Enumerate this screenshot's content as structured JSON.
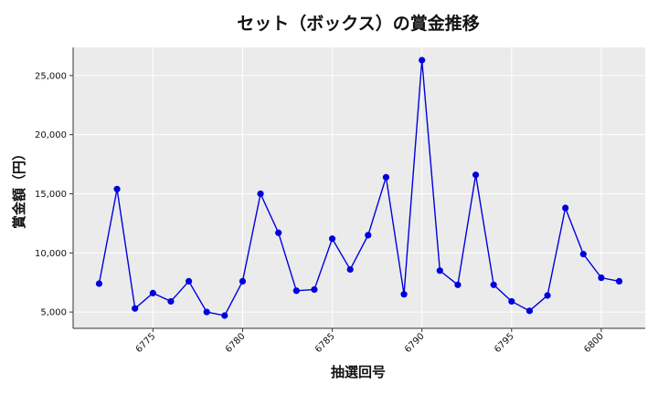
{
  "chart_data": {
    "type": "line",
    "title": "セット（ボックス）の賞金推移",
    "xlabel": "抽選回号",
    "ylabel": "賞金額（円）",
    "x": [
      6772,
      6773,
      6774,
      6775,
      6776,
      6777,
      6778,
      6779,
      6780,
      6781,
      6782,
      6783,
      6784,
      6785,
      6786,
      6787,
      6788,
      6789,
      6790,
      6791,
      6792,
      6793,
      6794,
      6795,
      6796,
      6797,
      6798,
      6799,
      6800,
      6801
    ],
    "series": [
      {
        "values": [
          7400,
          15400,
          5300,
          6600,
          5900,
          7600,
          5000,
          4700,
          7600,
          15000,
          11700,
          6800,
          6900,
          11200,
          8600,
          11500,
          16400,
          6500,
          26300,
          8500,
          7300,
          16600,
          7300,
          5900,
          5100,
          6400,
          13800,
          9900,
          7900,
          7600
        ],
        "color": "#0000dd"
      }
    ],
    "xlim": [
      6770.55,
      6802.45
    ],
    "ylim": [
      3620,
      27380
    ],
    "x_ticks": [
      6775,
      6780,
      6785,
      6790,
      6795,
      6800
    ],
    "x_tick_labels": [
      "6775",
      "6780",
      "6785",
      "6790",
      "6795",
      "6800"
    ],
    "y_ticks": [
      5000,
      10000,
      15000,
      20000,
      25000
    ],
    "y_tick_labels": [
      "5,000",
      "10,000",
      "15,000",
      "20,000",
      "25,000"
    ],
    "grid": true,
    "plot_background": "#ebebeb"
  }
}
